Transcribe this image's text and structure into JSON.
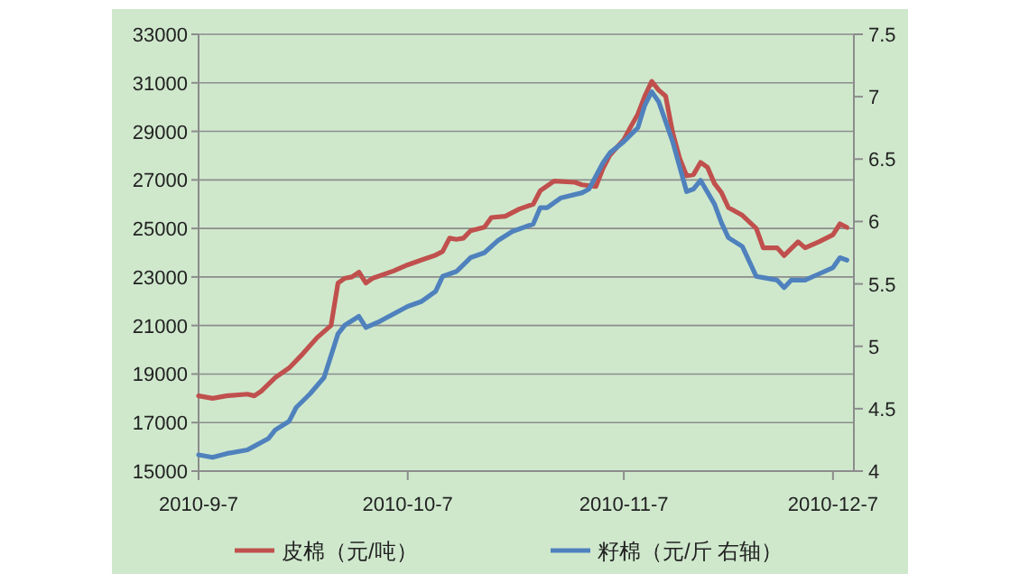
{
  "chart_data": {
    "type": "line",
    "xlim": [
      "2010-09-07",
      "2010-12-10"
    ],
    "xticks": [
      {
        "value": "2010-09-07",
        "label": "2010-9-7"
      },
      {
        "value": "2010-10-07",
        "label": "2010-10-7"
      },
      {
        "value": "2010-11-07",
        "label": "2010-11-7"
      },
      {
        "value": "2010-12-07",
        "label": "2010-12-7"
      }
    ],
    "ylim": [
      15000,
      33000
    ],
    "yticks": [
      15000,
      17000,
      19000,
      21000,
      23000,
      25000,
      27000,
      29000,
      31000,
      33000
    ],
    "y2lim": [
      4,
      7.5
    ],
    "y2ticks": [
      4,
      4.5,
      5,
      5.5,
      6,
      6.5,
      7,
      7.5
    ],
    "grid": "y",
    "legend": "bottom",
    "marker": "none",
    "line_style": "solid",
    "series": [
      {
        "name": "皮棉（元/吨）",
        "color": "#c0504d",
        "x": [
          "2010-09-07",
          "2010-09-09",
          "2010-09-11",
          "2010-09-14",
          "2010-09-15",
          "2010-09-16",
          "2010-09-18",
          "2010-09-20",
          "2010-09-22",
          "2010-09-24",
          "2010-09-26",
          "2010-09-27",
          "2010-09-28",
          "2010-09-29",
          "2010-09-30",
          "2010-10-01",
          "2010-10-02",
          "2010-10-05",
          "2010-10-07",
          "2010-10-09",
          "2010-10-11",
          "2010-10-12",
          "2010-10-13",
          "2010-10-14",
          "2010-10-15",
          "2010-10-16",
          "2010-10-18",
          "2010-10-19",
          "2010-10-21",
          "2010-10-23",
          "2010-10-25",
          "2010-10-26",
          "2010-10-28",
          "2010-10-31",
          "2010-11-01",
          "2010-11-03",
          "2010-11-04",
          "2010-11-05",
          "2010-11-06",
          "2010-11-07",
          "2010-11-08",
          "2010-11-09",
          "2010-11-10",
          "2010-11-11",
          "2010-11-12",
          "2010-11-13",
          "2010-11-14",
          "2010-11-15",
          "2010-11-16",
          "2010-11-17",
          "2010-11-18",
          "2010-11-19",
          "2010-11-20",
          "2010-11-21",
          "2010-11-22",
          "2010-11-24",
          "2010-11-26",
          "2010-11-27",
          "2010-11-28",
          "2010-11-29",
          "2010-11-30",
          "2010-12-02",
          "2010-12-03",
          "2010-12-05",
          "2010-12-07",
          "2010-12-08",
          "2010-12-09"
        ],
        "values": [
          18100,
          18000,
          18100,
          18170,
          18100,
          18300,
          18850,
          19250,
          19850,
          20500,
          21000,
          22750,
          22950,
          23000,
          23200,
          22750,
          22950,
          23250,
          23500,
          23700,
          23900,
          24050,
          24600,
          24550,
          24600,
          24900,
          25050,
          25450,
          25500,
          25800,
          26000,
          26550,
          26950,
          26900,
          26800,
          26730,
          27470,
          28020,
          28340,
          28660,
          29200,
          29700,
          30450,
          31060,
          30700,
          30450,
          28960,
          27900,
          27170,
          27220,
          27720,
          27520,
          26850,
          26480,
          25860,
          25540,
          25000,
          24200,
          24200,
          24200,
          23880,
          24450,
          24200,
          24450,
          24740,
          25190,
          25040
        ]
      },
      {
        "name": "籽棉（元/斤 右轴）",
        "color": "#4f81bd",
        "axis": "y2",
        "x": [
          "2010-09-07",
          "2010-09-09",
          "2010-09-11",
          "2010-09-14",
          "2010-09-15",
          "2010-09-17",
          "2010-09-18",
          "2010-09-20",
          "2010-09-21",
          "2010-09-23",
          "2010-09-25",
          "2010-09-27",
          "2010-09-28",
          "2010-09-30",
          "2010-10-01",
          "2010-10-03",
          "2010-10-05",
          "2010-10-07",
          "2010-10-09",
          "2010-10-11",
          "2010-10-12",
          "2010-10-14",
          "2010-10-16",
          "2010-10-18",
          "2010-10-20",
          "2010-10-22",
          "2010-10-25",
          "2010-10-26",
          "2010-10-27",
          "2010-10-29",
          "2010-11-01",
          "2010-11-02",
          "2010-11-04",
          "2010-11-05",
          "2010-11-07",
          "2010-11-09",
          "2010-11-10",
          "2010-11-11",
          "2010-11-12",
          "2010-11-14",
          "2010-11-16",
          "2010-11-17",
          "2010-11-18",
          "2010-11-20",
          "2010-11-21",
          "2010-11-22",
          "2010-11-24",
          "2010-11-26",
          "2010-11-27",
          "2010-11-29",
          "2010-11-30",
          "2010-12-01",
          "2010-12-03",
          "2010-12-05",
          "2010-12-07",
          "2010-12-08",
          "2010-12-09"
        ],
        "values": [
          4.13,
          4.11,
          4.14,
          4.17,
          4.2,
          4.26,
          4.33,
          4.4,
          4.51,
          4.62,
          4.75,
          5.1,
          5.17,
          5.24,
          5.15,
          5.2,
          5.26,
          5.32,
          5.36,
          5.44,
          5.56,
          5.6,
          5.71,
          5.75,
          5.85,
          5.92,
          5.98,
          6.11,
          6.11,
          6.19,
          6.23,
          6.26,
          6.47,
          6.55,
          6.64,
          6.75,
          6.93,
          7.04,
          6.96,
          6.64,
          6.24,
          6.26,
          6.33,
          6.14,
          5.99,
          5.87,
          5.8,
          5.56,
          5.55,
          5.53,
          5.47,
          5.53,
          5.53,
          5.58,
          5.63,
          5.71,
          5.69
        ]
      }
    ]
  }
}
